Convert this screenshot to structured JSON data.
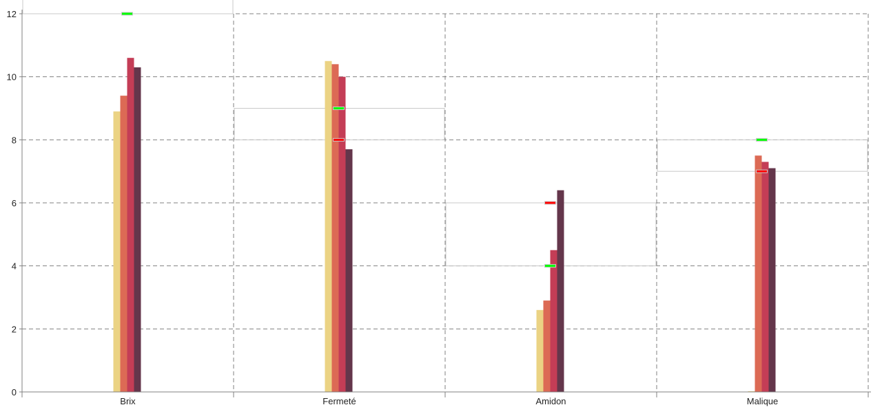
{
  "chart_data": {
    "type": "bar",
    "title": "",
    "xlabel": "",
    "ylabel": "",
    "ylim": [
      0,
      12
    ],
    "yticks": [
      0,
      2,
      4,
      6,
      8,
      10,
      12
    ],
    "grid": true,
    "categories": [
      "Brix",
      "Fermeté",
      "Amidon",
      "Malique"
    ],
    "series": [
      {
        "color": "#EBD384",
        "values": [
          8.9,
          10.5,
          2.6,
          0
        ]
      },
      {
        "color": "#DC6A55",
        "values": [
          9.4,
          10.4,
          2.9,
          7.5
        ]
      },
      {
        "color": "#C43D56",
        "values": [
          10.6,
          10.0,
          4.5,
          7.3
        ]
      },
      {
        "color": "#64364B",
        "values": [
          10.3,
          7.7,
          6.4,
          7.1
        ]
      }
    ],
    "target_ranges": [
      {
        "category": "Brix",
        "low": 12,
        "high": 13
      },
      {
        "category": "Fermeté",
        "low": 8,
        "high": 9
      },
      {
        "category": "Amidon",
        "low": 4,
        "high": 6
      },
      {
        "category": "Malique",
        "low": 7,
        "high": 8
      }
    ],
    "green_markers": [
      12,
      9,
      4,
      8
    ],
    "red_markers": [
      null,
      8,
      6,
      7
    ],
    "marker_colors": {
      "green": "#00FF00",
      "red": "#FF0000",
      "range_border": "#C8C8C8"
    }
  }
}
